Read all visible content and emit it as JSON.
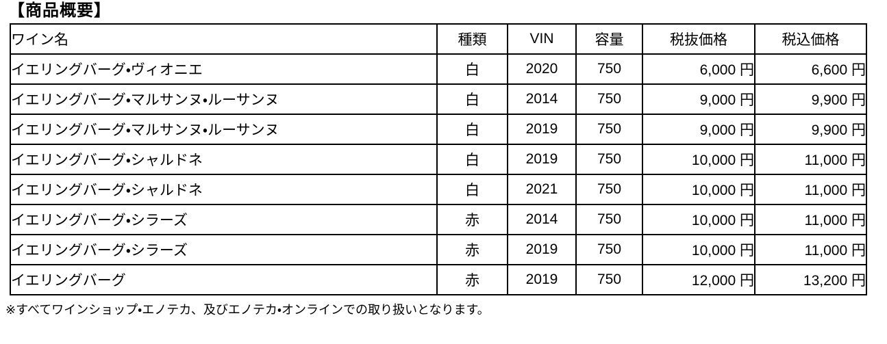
{
  "title": "【商品概要】",
  "table": {
    "headers": [
      "ワイン名",
      "種類",
      "VIN",
      "容量",
      "税抜価格",
      "税込価格"
    ],
    "rows": [
      [
        "イエリングバーグ・ヴィオニエ",
        "白",
        "2020",
        "750",
        "6,000 円",
        "6,600 円"
      ],
      [
        "イエリングバーグ・マルサンヌ・ルーサンヌ",
        "白",
        "2014",
        "750",
        "9,000 円",
        "9,900 円"
      ],
      [
        "イエリングバーグ・マルサンヌ・ルーサンヌ",
        "白",
        "2019",
        "750",
        "9,000 円",
        "9,900 円"
      ],
      [
        "イエリングバーグ・シャルドネ",
        "白",
        "2019",
        "750",
        "10,000 円",
        "11,000 円"
      ],
      [
        "イエリングバーグ・シャルドネ",
        "白",
        "2021",
        "750",
        "10,000 円",
        "11,000 円"
      ],
      [
        "イエリングバーグ・シラーズ",
        "赤",
        "2014",
        "750",
        "10,000 円",
        "11,000 円"
      ],
      [
        "イエリングバーグ・シラーズ",
        "赤",
        "2019",
        "750",
        "10,000 円",
        "11,000 円"
      ],
      [
        "イエリングバーグ",
        "赤",
        "2019",
        "750",
        "12,000 円",
        "13,200 円"
      ]
    ]
  },
  "footnote": "※すべてワインショップ・エノテカ、及びエノテカ・オンラインでの取り扱いとなります。"
}
